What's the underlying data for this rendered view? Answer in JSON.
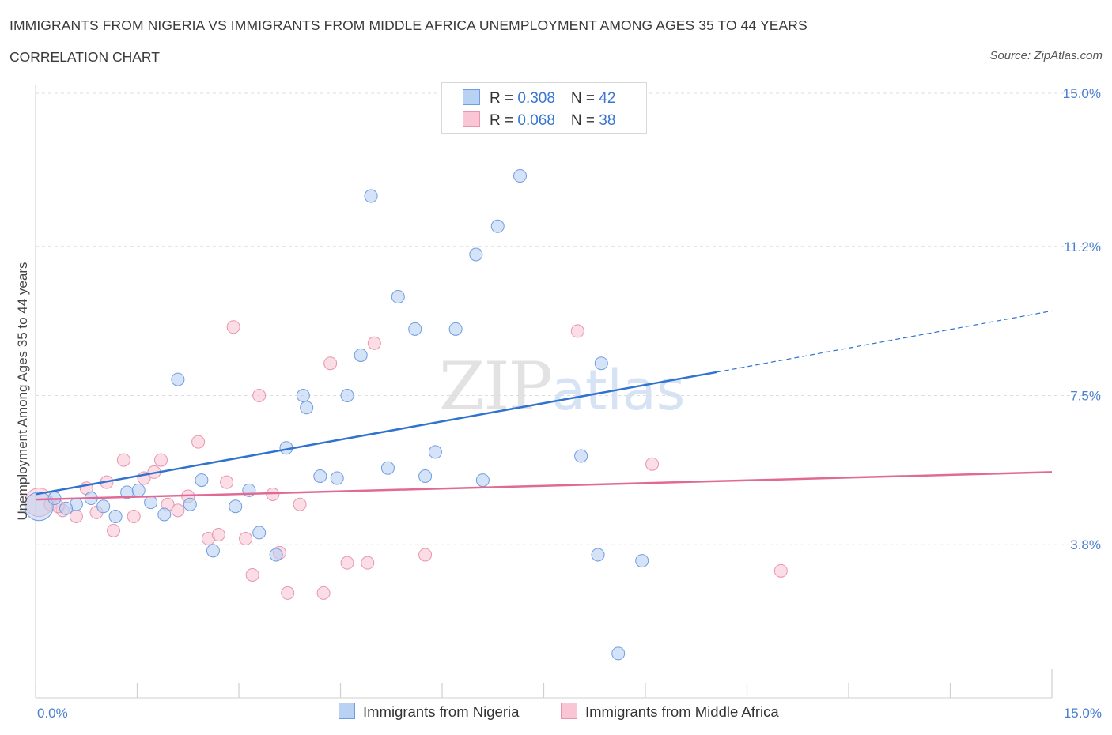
{
  "header": {
    "title": "IMMIGRANTS FROM NIGERIA VS IMMIGRANTS FROM MIDDLE AFRICA UNEMPLOYMENT AMONG AGES 35 TO 44 YEARS",
    "subtitle": "CORRELATION CHART",
    "source": "Source: ZipAtlas.com"
  },
  "watermark": {
    "zip": "ZIP",
    "atlas": "atlas"
  },
  "legend": {
    "nigeria": {
      "r_label": "R = ",
      "r_value": "0.308",
      "n_label": "N = ",
      "n_value": "42"
    },
    "middle_africa": {
      "r_label": "R = ",
      "r_value": "0.068",
      "n_label": "N = ",
      "n_value": "38"
    }
  },
  "bottom_legend": {
    "nigeria": "Immigrants from Nigeria",
    "middle_africa": "Immigrants from Middle Africa"
  },
  "colors": {
    "nigeria_fill": "#b9d1f3",
    "nigeria_stroke": "#6f9de0",
    "nigeria_line": "#2f72d0",
    "middle_africa_fill": "#f8c6d5",
    "middle_africa_stroke": "#e995b0",
    "middle_africa_line": "#e06a94",
    "tick_label": "#4a7fd0",
    "grid": "#dddddd"
  },
  "chart_data": {
    "type": "scatter",
    "title": "IMMIGRANTS FROM NIGERIA VS IMMIGRANTS FROM MIDDLE AFRICA UNEMPLOYMENT AMONG AGES 35 TO 44 YEARS",
    "xlabel": "",
    "ylabel": "Unemployment Among Ages 35 to 44 years",
    "xlim": [
      0,
      15
    ],
    "ylim": [
      0,
      15
    ],
    "x_tick_labels": [
      "0.0%",
      "15.0%"
    ],
    "y_ticks": [
      3.8,
      7.5,
      11.2,
      15.0
    ],
    "y_tick_labels": [
      "3.8%",
      "7.5%",
      "11.2%",
      "15.0%"
    ],
    "grid": "horizontal dashed",
    "legend_position": "top-center",
    "series": [
      {
        "name": "Immigrants from Nigeria",
        "trend": {
          "x": [
            0,
            10.05
          ],
          "y": [
            5.05,
            8.08
          ],
          "dashed_extension": {
            "x": [
              10.05,
              15.0
            ],
            "y": [
              8.08,
              9.6
            ]
          }
        },
        "points": [
          {
            "x": 0.05,
            "y": 4.75,
            "big": true
          },
          {
            "x": 0.28,
            "y": 4.95
          },
          {
            "x": 0.6,
            "y": 4.8
          },
          {
            "x": 0.82,
            "y": 4.95
          },
          {
            "x": 1.0,
            "y": 4.75
          },
          {
            "x": 1.18,
            "y": 4.5
          },
          {
            "x": 1.35,
            "y": 5.1
          },
          {
            "x": 1.52,
            "y": 5.15
          },
          {
            "x": 1.7,
            "y": 4.85
          },
          {
            "x": 1.9,
            "y": 4.55
          },
          {
            "x": 2.1,
            "y": 7.9
          },
          {
            "x": 2.28,
            "y": 4.8
          },
          {
            "x": 2.45,
            "y": 5.4
          },
          {
            "x": 2.62,
            "y": 3.65
          },
          {
            "x": 2.95,
            "y": 4.75
          },
          {
            "x": 3.15,
            "y": 5.15
          },
          {
            "x": 3.3,
            "y": 4.1
          },
          {
            "x": 3.55,
            "y": 3.55
          },
          {
            "x": 3.7,
            "y": 6.2
          },
          {
            "x": 3.95,
            "y": 7.5
          },
          {
            "x": 4.0,
            "y": 7.2
          },
          {
            "x": 4.2,
            "y": 5.5
          },
          {
            "x": 4.45,
            "y": 5.45
          },
          {
            "x": 4.6,
            "y": 7.5
          },
          {
            "x": 4.8,
            "y": 8.5
          },
          {
            "x": 4.95,
            "y": 12.45
          },
          {
            "x": 5.2,
            "y": 5.7
          },
          {
            "x": 5.35,
            "y": 9.95
          },
          {
            "x": 5.6,
            "y": 9.15
          },
          {
            "x": 5.75,
            "y": 5.5
          },
          {
            "x": 5.9,
            "y": 6.1
          },
          {
            "x": 6.2,
            "y": 9.15
          },
          {
            "x": 6.5,
            "y": 11.0
          },
          {
            "x": 6.6,
            "y": 5.4
          },
          {
            "x": 6.82,
            "y": 11.7
          },
          {
            "x": 7.15,
            "y": 12.95
          },
          {
            "x": 8.05,
            "y": 6.0
          },
          {
            "x": 8.3,
            "y": 3.55
          },
          {
            "x": 8.35,
            "y": 8.3
          },
          {
            "x": 8.6,
            "y": 1.1
          },
          {
            "x": 8.95,
            "y": 3.4
          },
          {
            "x": 0.45,
            "y": 4.7
          }
        ]
      },
      {
        "name": "Immigrants from Middle Africa",
        "trend": {
          "x": [
            0,
            15.0
          ],
          "y": [
            4.92,
            5.6
          ]
        },
        "points": [
          {
            "x": 0.05,
            "y": 4.85,
            "big": true
          },
          {
            "x": 0.22,
            "y": 4.8
          },
          {
            "x": 0.4,
            "y": 4.65
          },
          {
            "x": 0.6,
            "y": 4.5
          },
          {
            "x": 0.75,
            "y": 5.2
          },
          {
            "x": 0.9,
            "y": 4.6
          },
          {
            "x": 1.05,
            "y": 5.35
          },
          {
            "x": 1.15,
            "y": 4.15
          },
          {
            "x": 1.3,
            "y": 5.9
          },
          {
            "x": 1.45,
            "y": 4.5
          },
          {
            "x": 1.6,
            "y": 5.45
          },
          {
            "x": 1.75,
            "y": 5.6
          },
          {
            "x": 1.85,
            "y": 5.9
          },
          {
            "x": 1.95,
            "y": 4.8
          },
          {
            "x": 2.1,
            "y": 4.65
          },
          {
            "x": 2.25,
            "y": 5.0
          },
          {
            "x": 2.4,
            "y": 6.35
          },
          {
            "x": 2.55,
            "y": 3.95
          },
          {
            "x": 2.7,
            "y": 4.05
          },
          {
            "x": 2.82,
            "y": 5.35
          },
          {
            "x": 2.92,
            "y": 9.2
          },
          {
            "x": 3.1,
            "y": 3.95
          },
          {
            "x": 3.2,
            "y": 3.05
          },
          {
            "x": 3.3,
            "y": 7.5
          },
          {
            "x": 3.5,
            "y": 5.05
          },
          {
            "x": 3.6,
            "y": 3.6
          },
          {
            "x": 3.72,
            "y": 2.6
          },
          {
            "x": 3.9,
            "y": 4.8
          },
          {
            "x": 4.25,
            "y": 2.6
          },
          {
            "x": 4.35,
            "y": 8.3
          },
          {
            "x": 4.6,
            "y": 3.35
          },
          {
            "x": 4.9,
            "y": 3.35
          },
          {
            "x": 5.0,
            "y": 8.8
          },
          {
            "x": 5.75,
            "y": 3.55
          },
          {
            "x": 8.0,
            "y": 9.1
          },
          {
            "x": 9.1,
            "y": 5.8
          },
          {
            "x": 11.0,
            "y": 3.15
          },
          {
            "x": 0.33,
            "y": 4.75
          }
        ]
      }
    ]
  }
}
